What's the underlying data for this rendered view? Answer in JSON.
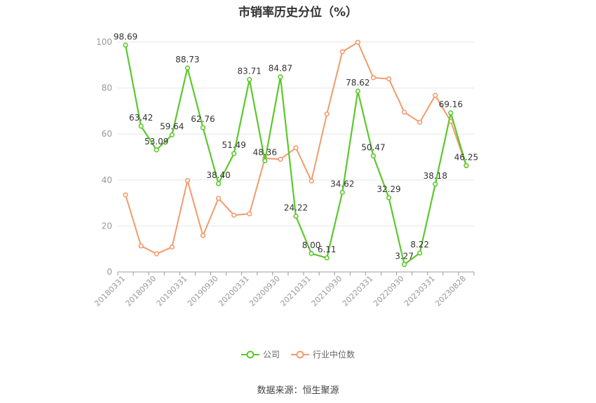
{
  "title": "市销率历史分位（%）",
  "source": "数据来源：恒生聚源",
  "chart_data": {
    "type": "line",
    "title": "市销率历史分位（%）",
    "ylim": [
      0,
      100
    ],
    "yticks": [
      0,
      20,
      40,
      60,
      80,
      100
    ],
    "grid": true,
    "legend_position": "bottom",
    "x": [
      "20180331",
      "20180630",
      "20180930",
      "20181231",
      "20190331",
      "20190630",
      "20190930",
      "20191231",
      "20200331",
      "20200630",
      "20200930",
      "20201231",
      "20210331",
      "20210630",
      "20210930",
      "20211231",
      "20220331",
      "20220630",
      "20220930",
      "20221231",
      "20230331",
      "20230630",
      "20230828"
    ],
    "xtick_labels": [
      "20180331",
      "20180930",
      "20190331",
      "20190930",
      "20200331",
      "20200930",
      "20210331",
      "20210930",
      "20220331",
      "20220930",
      "20230331",
      "20230828"
    ],
    "series": [
      {
        "name": "公司",
        "color": "#5cc82c",
        "values": [
          98.69,
          63.42,
          53.09,
          59.64,
          88.73,
          62.76,
          38.4,
          51.49,
          83.71,
          48.36,
          84.87,
          24.22,
          8.0,
          6.11,
          34.62,
          78.62,
          50.47,
          32.29,
          3.27,
          8.22,
          38.18,
          69.16,
          46.25
        ],
        "labels": [
          "98.69",
          "63.42",
          "53.09",
          "59.64",
          "88.73",
          "62.76",
          "38.40",
          "51.49",
          "83.71",
          "48.36",
          "84.87",
          "24.22",
          "8.00",
          "6.11",
          "34.62",
          "78.62",
          "50.47",
          "32.29",
          "3.27",
          "8.22",
          "38.18",
          "69.16",
          "46.25"
        ]
      },
      {
        "name": "行业中位数",
        "color": "#f39a6b",
        "values": [
          33.5,
          11.3,
          7.9,
          10.8,
          39.8,
          15.8,
          32.0,
          24.7,
          25.3,
          49.4,
          49.0,
          54.0,
          39.6,
          68.7,
          95.8,
          99.9,
          84.5,
          84.0,
          69.5,
          65.1,
          76.8,
          65.5,
          46.25
        ]
      }
    ]
  }
}
